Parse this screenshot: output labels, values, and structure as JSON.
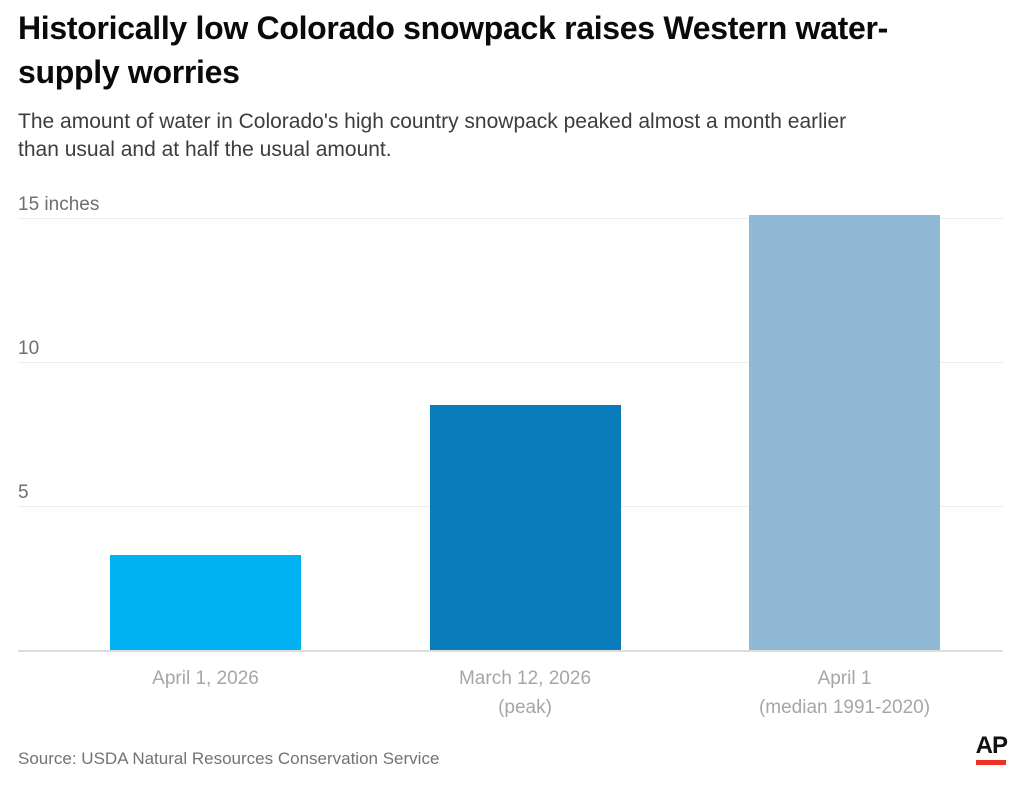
{
  "header": {
    "title": "Historically low Colorado snowpack raises Western water-\nsupply worries",
    "subtitle": "The amount of water in Colorado's high country snowpack peaked almost a month earlier\nthan usual and at half the usual amount."
  },
  "chart_data": {
    "type": "bar",
    "title": "Historically low Colorado snowpack raises Western water-supply worries",
    "subtitle": "The amount of water in Colorado's high country snowpack peaked almost a month earlier than usual and at half the usual amount.",
    "categories": [
      "April 1, 2026",
      "March 12, 2026\n(peak)",
      "April 1\n(median 1991-2020)"
    ],
    "values": [
      3.3,
      8.5,
      15.1
    ],
    "bar_colors": [
      "#00b2f1",
      "#0a7cba",
      "#90b9d5"
    ],
    "unit": "inches",
    "xlabel": "",
    "ylabel": "inches",
    "ylim": [
      0,
      15
    ],
    "yticks": [
      5,
      10,
      15
    ],
    "ytick_labels": [
      "5",
      "10",
      "15 inches"
    ],
    "grid": true,
    "legend": false,
    "gridline_color": "#ececec",
    "baseline_color": "#dcdcdc",
    "ytick_label_color": "#6e6e6e",
    "category_label_color": "#a6a6a6"
  },
  "footer": {
    "source": "Source: USDA Natural Resources Conservation Service",
    "ap_logo_text": "AP",
    "ap_logo_red": "#ee3124"
  }
}
